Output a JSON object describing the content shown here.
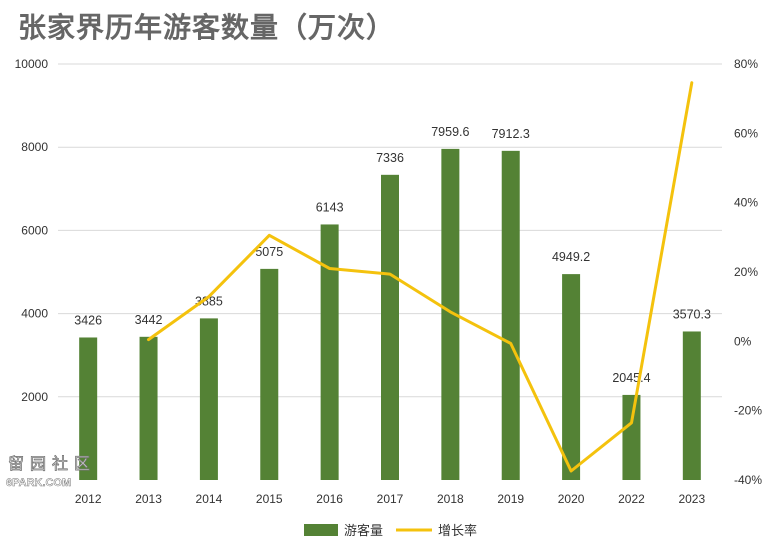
{
  "title": "张家界历年游客数量（万次）",
  "watermark": {
    "cn": "留园社区",
    "en": "6PARK.COM"
  },
  "chart_data": {
    "type": "bar",
    "title": "张家界历年游客数量（万次）",
    "categories": [
      "2012",
      "2013",
      "2014",
      "2015",
      "2016",
      "2017",
      "2018",
      "2019",
      "2020",
      "2022",
      "2023"
    ],
    "series": [
      {
        "name": "游客量",
        "type": "bar",
        "axis": "left",
        "color": "#548235",
        "values": [
          3426,
          3442,
          3885,
          5075,
          6143,
          7336,
          7959.6,
          7912.3,
          4949.2,
          2045.4,
          3570.3
        ],
        "labels": [
          "3426",
          "3442",
          "3885",
          "5075",
          "6143",
          "7336",
          "7959.6",
          "7912.3",
          "4949.2",
          "2045.4",
          "3570.3"
        ]
      },
      {
        "name": "增长率",
        "type": "line",
        "axis": "right",
        "color": "#F4C20D",
        "values": [
          null,
          0.5,
          12.9,
          30.6,
          21.0,
          19.4,
          8.5,
          -0.6,
          -37.4,
          -23.5,
          74.6
        ]
      }
    ],
    "y_left": {
      "ylim": [
        0,
        10000
      ],
      "ticks": [
        "0",
        "2000",
        "4000",
        "6000",
        "8000",
        "10000"
      ],
      "tick_values": [
        0,
        2000,
        4000,
        6000,
        8000,
        10000
      ]
    },
    "y_right": {
      "ylim": [
        -40,
        80
      ],
      "ticks": [
        "-40%",
        "-20%",
        "0%",
        "20%",
        "40%",
        "60%",
        "80%"
      ],
      "tick_values": [
        -40,
        -20,
        0,
        20,
        40,
        60,
        80
      ]
    },
    "grid": true,
    "legend": {
      "position": "bottom",
      "items": [
        "游客量",
        "增长率"
      ]
    }
  }
}
